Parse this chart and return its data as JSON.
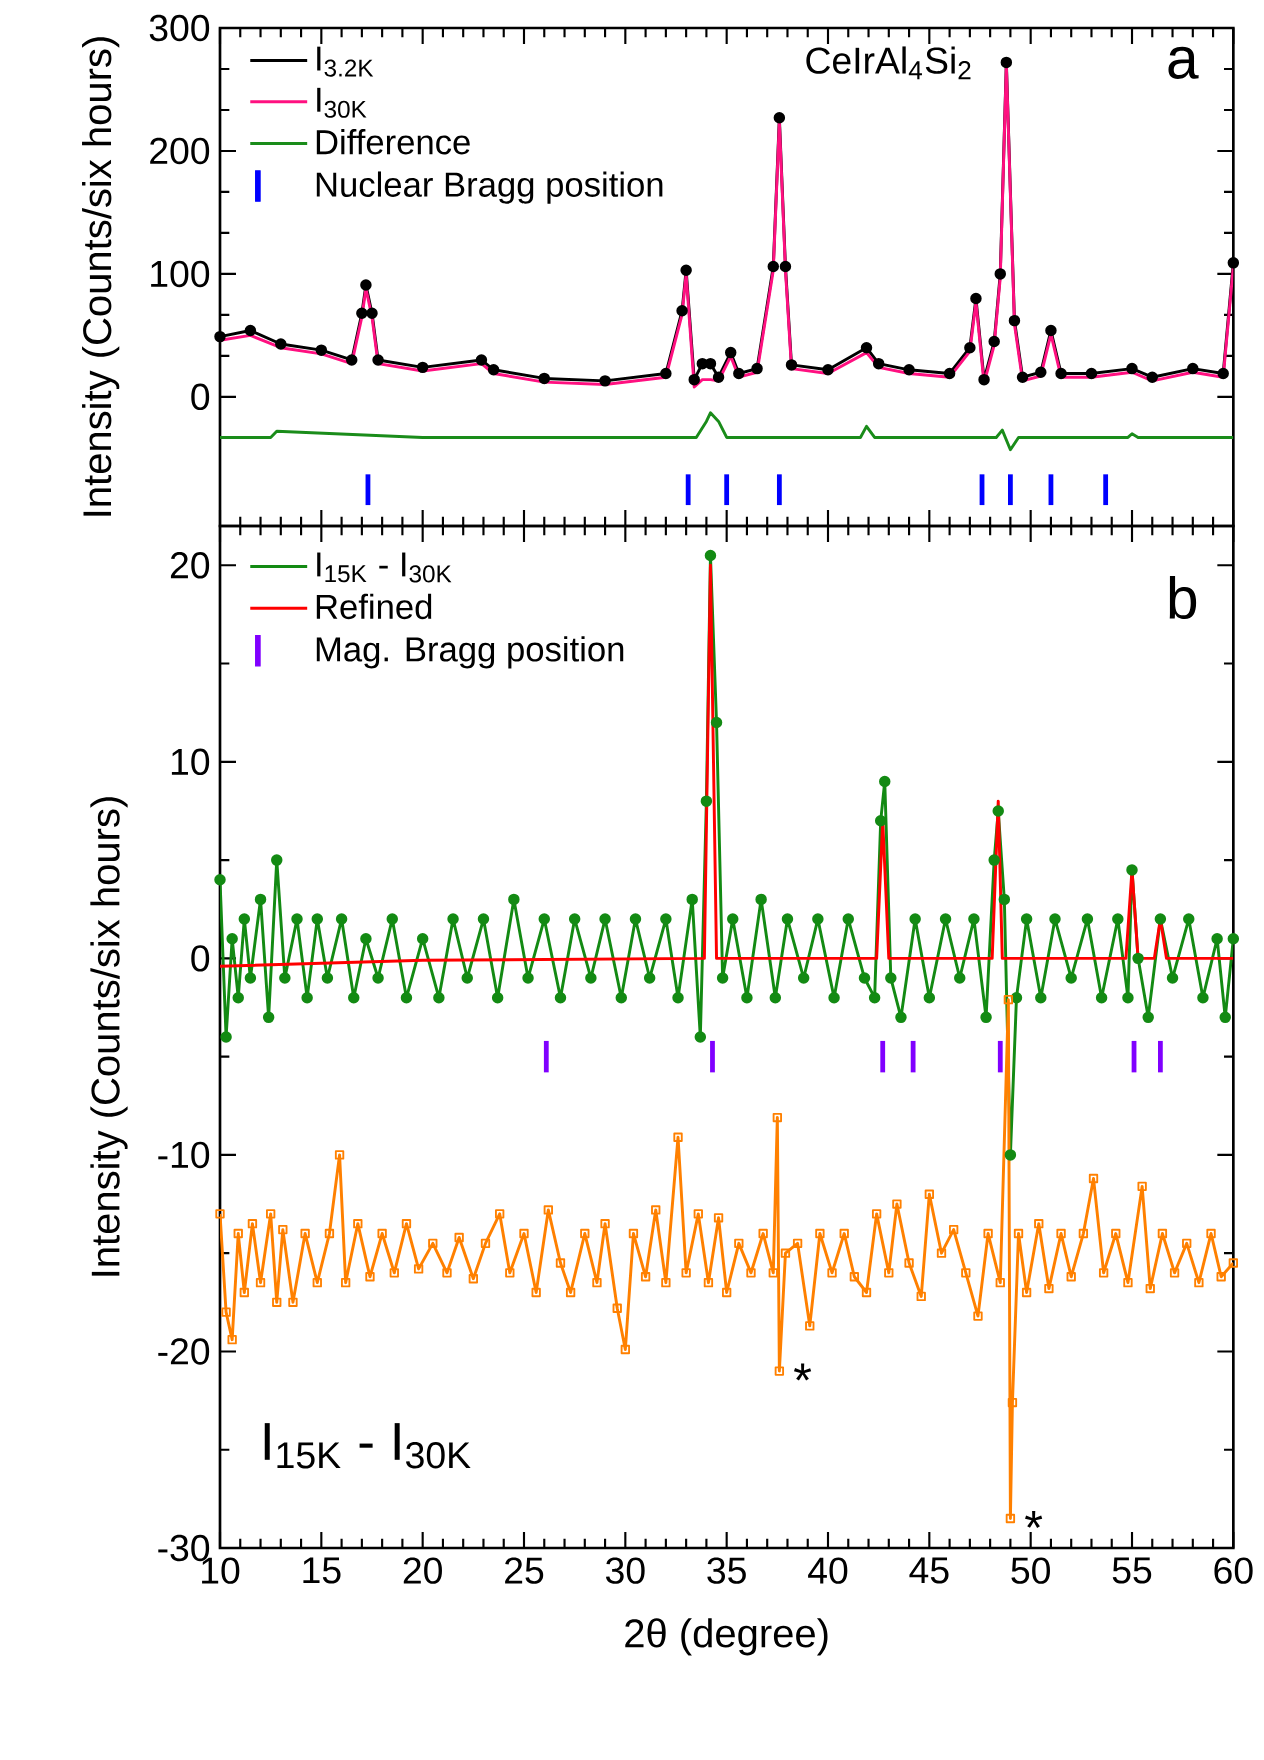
{
  "chart_data": [
    {
      "type": "line",
      "ylabel": "Intensity (Counts/six hours)",
      "xlim": [
        10,
        60
      ],
      "xticks": [
        10,
        15,
        20,
        25,
        30,
        35,
        40,
        45,
        50,
        55,
        60
      ],
      "ylim": [
        -105,
        300
      ],
      "yticks": [
        0,
        100,
        200,
        300
      ],
      "tick_labels": "y",
      "legend": "top left",
      "annotations": [
        "CeIrAl$_{4}$Si$_{2}$",
        "a"
      ],
      "series": [
        {
          "name": "I$_{3.2K}$",
          "color": "#000000",
          "marker": "circle",
          "x": [
            10,
            11.5,
            13,
            15,
            16.5,
            17.0,
            17.2,
            17.5,
            17.8,
            20,
            22.9,
            23.5,
            26,
            29,
            32,
            32.8,
            33.0,
            33.4,
            33.8,
            34.2,
            34.6,
            35.2,
            35.6,
            36.5,
            37.3,
            37.6,
            37.9,
            38.2,
            40,
            41.9,
            42.5,
            44,
            46,
            47.0,
            47.3,
            47.7,
            48.2,
            48.5,
            48.8,
            49.2,
            49.6,
            50.5,
            51.0,
            51.5,
            53,
            55,
            56,
            58,
            59.5,
            60
          ],
          "values": [
            49,
            54,
            43,
            38,
            30,
            68,
            91,
            68,
            30,
            24,
            30,
            22,
            15,
            13,
            19,
            70,
            103,
            14,
            27,
            27,
            16,
            36,
            19,
            23,
            106,
            227,
            106,
            26,
            22,
            40,
            27,
            22,
            19,
            40,
            80,
            14,
            45,
            100,
            272,
            62,
            16,
            20,
            54,
            19,
            19,
            23,
            16,
            23,
            19,
            109
          ]
        },
        {
          "name": "I$_{30K}$",
          "color": "#ff1080",
          "x": [
            10,
            11.5,
            13,
            15,
            16.5,
            17.0,
            17.2,
            17.5,
            17.8,
            20,
            22.9,
            23.5,
            26,
            29,
            32,
            32.8,
            33.0,
            33.4,
            33.8,
            34.2,
            34.6,
            35.2,
            35.6,
            36.5,
            37.3,
            37.6,
            37.9,
            38.2,
            40,
            41.9,
            42.5,
            44,
            46,
            47.0,
            47.3,
            47.7,
            48.2,
            48.5,
            48.8,
            49.2,
            49.6,
            50.5,
            51.0,
            51.5,
            53,
            55,
            56,
            58,
            59.5,
            60
          ],
          "values": [
            46,
            50,
            40,
            35,
            27,
            65,
            88,
            65,
            27,
            21,
            27,
            19,
            12,
            10,
            16,
            67,
            100,
            8,
            14,
            14,
            13,
            33,
            16,
            20,
            103,
            224,
            103,
            23,
            19,
            36,
            24,
            19,
            16,
            37,
            77,
            11,
            42,
            97,
            270,
            59,
            13,
            17,
            51,
            16,
            16,
            20,
            13,
            20,
            16,
            106
          ]
        },
        {
          "name": "Difference",
          "color": "#1a8c1a",
          "x": [
            10,
            12.5,
            12.8,
            20,
            30,
            33.5,
            34.0,
            34.2,
            34.6,
            35.0,
            41.6,
            41.9,
            42.3,
            48.3,
            48.6,
            49.0,
            49.4,
            54.8,
            55.0,
            55.3,
            60
          ],
          "values": [
            -33,
            -33,
            -28,
            -33,
            -33,
            -33,
            -20,
            -13,
            -20,
            -33,
            -33,
            -24,
            -33,
            -33,
            -27,
            -43,
            -33,
            -33,
            -30,
            -33,
            -33
          ]
        },
        {
          "name": "Nuclear Bragg position",
          "type": "bar",
          "color": "#0000ff",
          "x": [
            17.3,
            33.1,
            35.0,
            37.6,
            47.6,
            49.0,
            51.0,
            53.7
          ],
          "base": [
            -88,
            -88,
            -88,
            -88,
            -88,
            -88,
            -88,
            -88
          ],
          "values": [
            25,
            25,
            25,
            25,
            25,
            25,
            25,
            25
          ]
        }
      ]
    },
    {
      "type": "line",
      "xlabel": "2θ (degree)",
      "ylabel": "Intensity (Counts/six hours)",
      "xlim": [
        10,
        60
      ],
      "xticks": [
        10,
        15,
        20,
        25,
        30,
        35,
        40,
        45,
        50,
        55,
        60
      ],
      "ylim": [
        -30,
        22
      ],
      "yticks": [
        -30,
        -20,
        -10,
        0,
        10,
        20
      ],
      "legend": "top left",
      "annotations": [
        "b",
        "I$_{15K}$ - I$_{30K}$",
        {
          "text": "*",
          "x": 37.6,
          "y": -21
        },
        {
          "text": "*",
          "x": 49.0,
          "y": -28.5
        }
      ],
      "series": [
        {
          "name": "I$_{15K}$ - I$_{30K}$",
          "color": "#138a13",
          "marker": "circle",
          "x": [
            10.0,
            10.3,
            10.6,
            10.9,
            11.2,
            11.5,
            12.0,
            12.4,
            12.8,
            13.2,
            13.8,
            14.3,
            14.8,
            15.3,
            16.0,
            16.6,
            17.2,
            17.8,
            18.5,
            19.2,
            20.0,
            20.8,
            21.5,
            22.2,
            23.0,
            23.7,
            24.5,
            25.2,
            26.0,
            26.8,
            27.5,
            28.3,
            29.0,
            29.8,
            30.5,
            31.2,
            32.0,
            32.6,
            33.3,
            33.7,
            34.0,
            34.2,
            34.5,
            34.8,
            35.3,
            36.0,
            36.7,
            37.4,
            38.0,
            38.8,
            39.5,
            40.3,
            41.0,
            41.8,
            42.3,
            42.6,
            42.8,
            43.1,
            43.6,
            44.3,
            45.0,
            45.8,
            46.5,
            47.2,
            47.8,
            48.2,
            48.4,
            48.7,
            49.0,
            49.3,
            49.8,
            50.5,
            51.2,
            52.0,
            52.8,
            53.5,
            54.3,
            54.8,
            55.0,
            55.3,
            55.8,
            56.4,
            57.0,
            57.8,
            58.5,
            59.2,
            59.6,
            60.0
          ],
          "values": [
            4,
            -4,
            1,
            -2,
            2,
            -1,
            3,
            -3,
            5,
            -1,
            2,
            -2,
            2,
            -1,
            2,
            -2,
            1,
            -1,
            2,
            -2,
            1,
            -2,
            2,
            -1,
            2,
            -2,
            3,
            -1,
            2,
            -2,
            2,
            -1,
            2,
            -2,
            2,
            -1,
            2,
            -2,
            3,
            -4,
            8,
            20.5,
            12,
            -1,
            2,
            -2,
            3,
            -2,
            2,
            -1,
            2,
            -2,
            2,
            -1,
            -2,
            7,
            9,
            -1,
            -3,
            2,
            -2,
            2,
            -1,
            2,
            -3,
            5,
            7.5,
            3,
            -10,
            -2,
            2,
            -2,
            2,
            -1,
            2,
            -2,
            2,
            -2,
            4.5,
            0,
            -3,
            2,
            -1,
            2,
            -2,
            1,
            -3,
            1
          ]
        },
        {
          "name": "Refined",
          "color": "#ff0000",
          "x": [
            10,
            20,
            33.9,
            34.2,
            34.5,
            42.4,
            42.7,
            43.0,
            48.1,
            48.4,
            48.6,
            54.7,
            55.0,
            55.3,
            56.1,
            56.4,
            56.7,
            60
          ],
          "values": [
            -0.4,
            -0.1,
            0,
            20,
            0,
            0,
            7,
            0,
            0,
            8,
            0,
            0,
            4.5,
            0,
            0,
            2,
            0,
            0
          ]
        },
        {
          "name": "Mag. Bragg position",
          "type": "bar",
          "color": "#8000ff",
          "x": [
            26.1,
            34.3,
            42.7,
            44.2,
            48.5,
            55.1,
            56.4
          ],
          "base": [
            -5.8,
            -5.8,
            -5.8,
            -5.8,
            -5.8,
            -5.8,
            -5.8
          ],
          "values": [
            1.6,
            1.6,
            1.6,
            1.6,
            1.6,
            1.6,
            1.6
          ]
        },
        {
          "color": "#ff8000",
          "marker": "square",
          "x": [
            10.0,
            10.3,
            10.6,
            10.9,
            11.2,
            11.6,
            12.0,
            12.5,
            12.8,
            13.1,
            13.6,
            14.2,
            14.8,
            15.4,
            15.9,
            16.2,
            16.8,
            17.4,
            18.0,
            18.6,
            19.2,
            19.8,
            20.5,
            21.2,
            21.8,
            22.5,
            23.1,
            23.8,
            24.3,
            25.0,
            25.6,
            26.2,
            26.8,
            27.3,
            28.0,
            28.6,
            29.0,
            29.6,
            30.0,
            30.4,
            31.0,
            31.5,
            32.0,
            32.6,
            33.0,
            33.6,
            34.1,
            34.6,
            35.0,
            35.6,
            36.2,
            36.8,
            37.3,
            37.5,
            37.6,
            37.9,
            38.5,
            39.1,
            39.6,
            40.2,
            40.8,
            41.3,
            41.9,
            42.4,
            43.0,
            43.4,
            44.0,
            44.6,
            45.0,
            45.6,
            46.2,
            46.8,
            47.4,
            47.9,
            48.5,
            48.9,
            49.0,
            49.1,
            49.4,
            49.8,
            50.4,
            50.9,
            51.5,
            52.0,
            52.6,
            53.1,
            53.6,
            54.2,
            54.8,
            55.5,
            55.9,
            56.5,
            57.1,
            57.7,
            58.3,
            58.9,
            59.4,
            60.0
          ],
          "values": [
            -13,
            -18,
            -19.4,
            -14,
            -17,
            -13.5,
            -16.5,
            -13,
            -17.5,
            -13.8,
            -17.5,
            -14,
            -16.5,
            -14,
            -10,
            -16.5,
            -13.5,
            -16.2,
            -14,
            -16,
            -13.5,
            -15.8,
            -14.5,
            -16,
            -14.2,
            -16.3,
            -14.5,
            -13,
            -16,
            -14,
            -17,
            -12.8,
            -15.5,
            -17,
            -14,
            -16.5,
            -13.5,
            -17.8,
            -19.9,
            -14,
            -16.2,
            -12.8,
            -16.5,
            -9.1,
            -16,
            -13,
            -16.5,
            -13.2,
            -17,
            -14.5,
            -16,
            -14,
            -16,
            -8.1,
            -21,
            -15,
            -14.5,
            -18.7,
            -14,
            -16,
            -14,
            -16.2,
            -17,
            -13,
            -16,
            -12.5,
            -15.5,
            -17.2,
            -12,
            -15,
            -13.8,
            -16,
            -18.2,
            -14,
            -16.5,
            -2.1,
            -28.5,
            -22.6,
            -14,
            -17,
            -13.5,
            -16.8,
            -14,
            -16.2,
            -14,
            -11.2,
            -16,
            -14,
            -16.5,
            -11.6,
            -16.8,
            -14,
            -16,
            -14.5,
            -16.5,
            -14,
            -16.2,
            -15.5
          ]
        }
      ]
    }
  ]
}
